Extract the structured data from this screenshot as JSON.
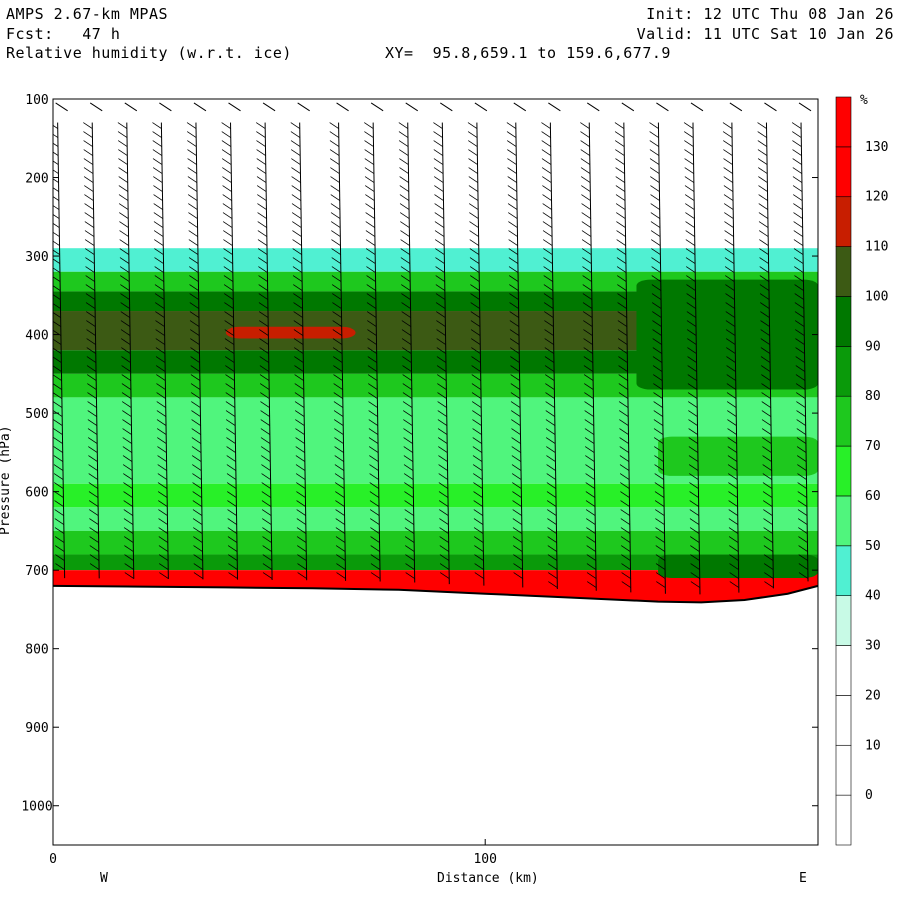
{
  "header": {
    "model": "AMPS 2.67-km MPAS",
    "forecast": "Fcst:   47 h",
    "field": "Relative humidity (w.r.t. ice)",
    "xy": "XY=  95.8,659.1 to 159.6,677.9",
    "init": "Init: 12 UTC Thu 08 Jan 26",
    "valid": "Valid: 11 UTC Sat 10 Jan 26"
  },
  "chart_data": {
    "type": "heatmap",
    "title": "Relative humidity (w.r.t. ice)",
    "xlabel": "Distance (km)",
    "ylabel": "Pressure (hPa)",
    "xlim": [
      0,
      177
    ],
    "ylim": [
      100,
      1050
    ],
    "y_log_scale": false,
    "x_ticks": [
      0,
      100
    ],
    "y_ticks": [
      100,
      200,
      300,
      400,
      500,
      600,
      700,
      800,
      900,
      1000
    ],
    "x_end_labels": {
      "left": "W",
      "right": "E"
    },
    "colorbar": {
      "unit": "%",
      "levels": [
        0,
        10,
        20,
        30,
        40,
        50,
        60,
        70,
        80,
        90,
        100,
        110,
        120,
        130
      ],
      "colors": [
        "#ffffff",
        "#ffffff",
        "#ffffff",
        "#ffffff",
        "#c8fae6",
        "#50f0d2",
        "#50f57d",
        "#28f028",
        "#1ec81e",
        "#0a9a0a",
        "#007800",
        "#3c5a14",
        "#c81e00",
        "#ff0000",
        "#ff0000"
      ]
    },
    "terrain_pressure_profile": {
      "x": [
        0,
        20,
        40,
        60,
        80,
        100,
        120,
        140,
        150,
        160,
        170,
        177
      ],
      "p": [
        720,
        721,
        722,
        723,
        725,
        730,
        735,
        740,
        741,
        738,
        730,
        720
      ]
    },
    "rh_layers": [
      {
        "p_top": 100,
        "p_bottom": 290,
        "rh": 5
      },
      {
        "p_top": 290,
        "p_bottom": 320,
        "rh": 45
      },
      {
        "p_top": 320,
        "p_bottom": 345,
        "rh": 75
      },
      {
        "p_top": 345,
        "p_bottom": 370,
        "rh": 95
      },
      {
        "p_top": 370,
        "p_bottom": 420,
        "rh": 105
      },
      {
        "p_top": 420,
        "p_bottom": 450,
        "rh": 95
      },
      {
        "p_top": 450,
        "p_bottom": 480,
        "rh": 75
      },
      {
        "p_top": 480,
        "p_bottom": 590,
        "rh": 55
      },
      {
        "p_top": 590,
        "p_bottom": 620,
        "rh": 65
      },
      {
        "p_top": 620,
        "p_bottom": 650,
        "rh": 55
      },
      {
        "p_top": 650,
        "p_bottom": 680,
        "rh": 75
      },
      {
        "p_top": 680,
        "p_bottom": 700,
        "rh": 85
      },
      {
        "p_top": 700,
        "p_bottom": 740,
        "rh": 135
      }
    ],
    "rh_features": [
      {
        "x_start": 40,
        "x_end": 70,
        "p_top": 390,
        "p_bottom": 405,
        "rh": 115
      },
      {
        "x_start": 135,
        "x_end": 177,
        "p_top": 330,
        "p_bottom": 470,
        "rh": 95
      },
      {
        "x_start": 140,
        "x_end": 177,
        "p_top": 530,
        "p_bottom": 580,
        "rh": 75
      },
      {
        "x_start": 140,
        "x_end": 177,
        "p_top": 680,
        "p_bottom": 710,
        "rh": 95
      }
    ],
    "wind_barb_columns_x": [
      2,
      10,
      18,
      26,
      34,
      42,
      50,
      58,
      67,
      75,
      83,
      91,
      99,
      108,
      116,
      125,
      133,
      141,
      149,
      158,
      166,
      174
    ]
  }
}
